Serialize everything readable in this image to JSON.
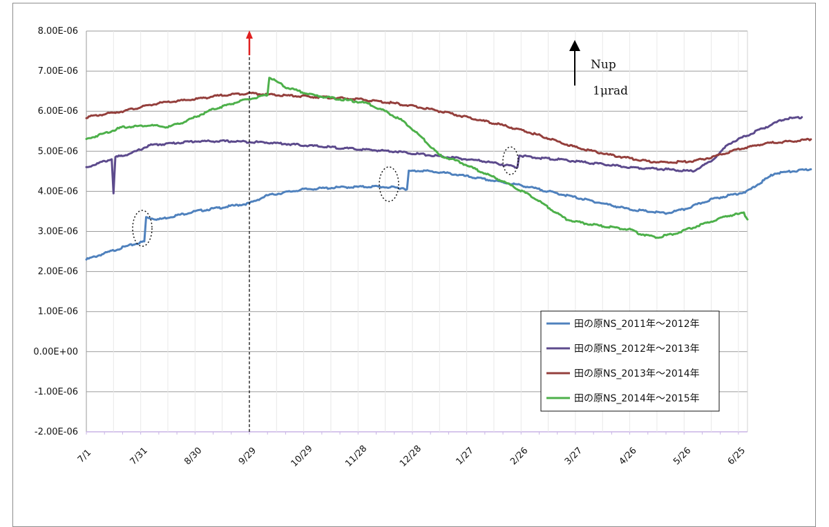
{
  "chart_data": {
    "type": "line",
    "title": "",
    "xlabel": "",
    "ylabel": "",
    "x_ticks": [
      "7/1",
      "7/31",
      "8/30",
      "9/29",
      "10/29",
      "11/28",
      "12/28",
      "1/27",
      "2/26",
      "3/27",
      "4/26",
      "5/26",
      "6/25"
    ],
    "x_range_days": [
      0,
      365
    ],
    "y_ticks": [
      "8.00E-06",
      "7.00E-06",
      "6.00E-06",
      "5.00E-06",
      "4.00E-06",
      "3.00E-06",
      "2.00E-06",
      "1.00E-06",
      "0.00E+00",
      "-1.00E-06",
      "-2.00E-06"
    ],
    "ylim": [
      -2e-06,
      8e-06
    ],
    "grid": true,
    "legend_position": "bottom-right",
    "annotations": {
      "arrow_label_1": "Nup",
      "arrow_label_2": "1μrad",
      "event_line_date": "9/29"
    },
    "series": [
      {
        "name": "田の原NS_2011年～2012年",
        "color": "#4f81bd",
        "points": [
          [
            0,
            2.3e-06
          ],
          [
            10,
            2.45e-06
          ],
          [
            20,
            2.6e-06
          ],
          [
            32,
            2.75e-06
          ],
          [
            33,
            3.35e-06
          ],
          [
            40,
            3.3e-06
          ],
          [
            60,
            3.5e-06
          ],
          [
            90,
            3.7e-06
          ],
          [
            100,
            3.9e-06
          ],
          [
            120,
            4.05e-06
          ],
          [
            140,
            4.1e-06
          ],
          [
            160,
            4.12e-06
          ],
          [
            175,
            4.08e-06
          ],
          [
            177,
            4.05e-06
          ],
          [
            178,
            4.5e-06
          ],
          [
            185,
            4.52e-06
          ],
          [
            200,
            4.45e-06
          ],
          [
            220,
            4.3e-06
          ],
          [
            240,
            4.15e-06
          ],
          [
            260,
            3.95e-06
          ],
          [
            280,
            3.75e-06
          ],
          [
            300,
            3.55e-06
          ],
          [
            310,
            3.5e-06
          ],
          [
            320,
            3.45e-06
          ],
          [
            330,
            3.55e-06
          ],
          [
            345,
            3.8e-06
          ],
          [
            365,
            4e-06
          ],
          [
            380,
            4.45e-06
          ],
          [
            400,
            4.55e-06
          ]
        ]
      },
      {
        "name": "田の原NS_2012年～2013年",
        "color": "#5c4a8c",
        "points": [
          [
            0,
            4.6e-06
          ],
          [
            10,
            4.75e-06
          ],
          [
            14,
            4.8e-06
          ],
          [
            15,
            3.95e-06
          ],
          [
            16,
            4.85e-06
          ],
          [
            25,
            4.95e-06
          ],
          [
            35,
            5.15e-06
          ],
          [
            60,
            5.25e-06
          ],
          [
            80,
            5.25e-06
          ],
          [
            100,
            5.22e-06
          ],
          [
            120,
            5.15e-06
          ],
          [
            150,
            5.05e-06
          ],
          [
            170,
            5e-06
          ],
          [
            190,
            4.9e-06
          ],
          [
            220,
            4.75e-06
          ],
          [
            238,
            4.6e-06
          ],
          [
            239,
            4.9e-06
          ],
          [
            245,
            4.85e-06
          ],
          [
            260,
            4.8e-06
          ],
          [
            280,
            4.7e-06
          ],
          [
            300,
            4.6e-06
          ],
          [
            320,
            4.55e-06
          ],
          [
            335,
            4.5e-06
          ],
          [
            345,
            4.75e-06
          ],
          [
            355,
            5.2e-06
          ],
          [
            370,
            5.5e-06
          ],
          [
            385,
            5.8e-06
          ],
          [
            395,
            5.85e-06
          ]
        ]
      },
      {
        "name": "田の原NS_2013年～2014年",
        "color": "#943f3c",
        "points": [
          [
            0,
            5.85e-06
          ],
          [
            20,
            6e-06
          ],
          [
            40,
            6.2e-06
          ],
          [
            60,
            6.3e-06
          ],
          [
            75,
            6.4e-06
          ],
          [
            90,
            6.45e-06
          ],
          [
            105,
            6.4e-06
          ],
          [
            130,
            6.35e-06
          ],
          [
            150,
            6.3e-06
          ],
          [
            170,
            6.2e-06
          ],
          [
            190,
            6.05e-06
          ],
          [
            210,
            5.85e-06
          ],
          [
            230,
            5.65e-06
          ],
          [
            250,
            5.4e-06
          ],
          [
            270,
            5.1e-06
          ],
          [
            290,
            4.9e-06
          ],
          [
            310,
            4.75e-06
          ],
          [
            320,
            4.72e-06
          ],
          [
            335,
            4.75e-06
          ],
          [
            345,
            4.85e-06
          ],
          [
            360,
            5.05e-06
          ],
          [
            375,
            5.2e-06
          ],
          [
            390,
            5.25e-06
          ],
          [
            400,
            5.3e-06
          ]
        ]
      },
      {
        "name": "田の原NS_2014年～2015年",
        "color": "#4db04a",
        "points": [
          [
            0,
            5.3e-06
          ],
          [
            10,
            5.45e-06
          ],
          [
            20,
            5.6e-06
          ],
          [
            35,
            5.65e-06
          ],
          [
            45,
            5.6e-06
          ],
          [
            55,
            5.75e-06
          ],
          [
            70,
            6.05e-06
          ],
          [
            85,
            6.25e-06
          ],
          [
            95,
            6.35e-06
          ],
          [
            100,
            6.4e-06
          ],
          [
            101,
            6.85e-06
          ],
          [
            110,
            6.6e-06
          ],
          [
            125,
            6.4e-06
          ],
          [
            140,
            6.3e-06
          ],
          [
            155,
            6.2e-06
          ],
          [
            165,
            6e-06
          ],
          [
            175,
            5.75e-06
          ],
          [
            185,
            5.35e-06
          ],
          [
            195,
            4.9e-06
          ],
          [
            205,
            4.75e-06
          ],
          [
            215,
            4.55e-06
          ],
          [
            230,
            4.25e-06
          ],
          [
            245,
            3.9e-06
          ],
          [
            255,
            3.6e-06
          ],
          [
            265,
            3.3e-06
          ],
          [
            275,
            3.2e-06
          ],
          [
            290,
            3.1e-06
          ],
          [
            300,
            3.05e-06
          ],
          [
            305,
            2.95e-06
          ],
          [
            315,
            2.85e-06
          ],
          [
            325,
            2.95e-06
          ],
          [
            335,
            3.1e-06
          ],
          [
            345,
            3.25e-06
          ],
          [
            355,
            3.4e-06
          ],
          [
            363,
            3.45e-06
          ],
          [
            365,
            3.3e-06
          ]
        ]
      }
    ]
  }
}
